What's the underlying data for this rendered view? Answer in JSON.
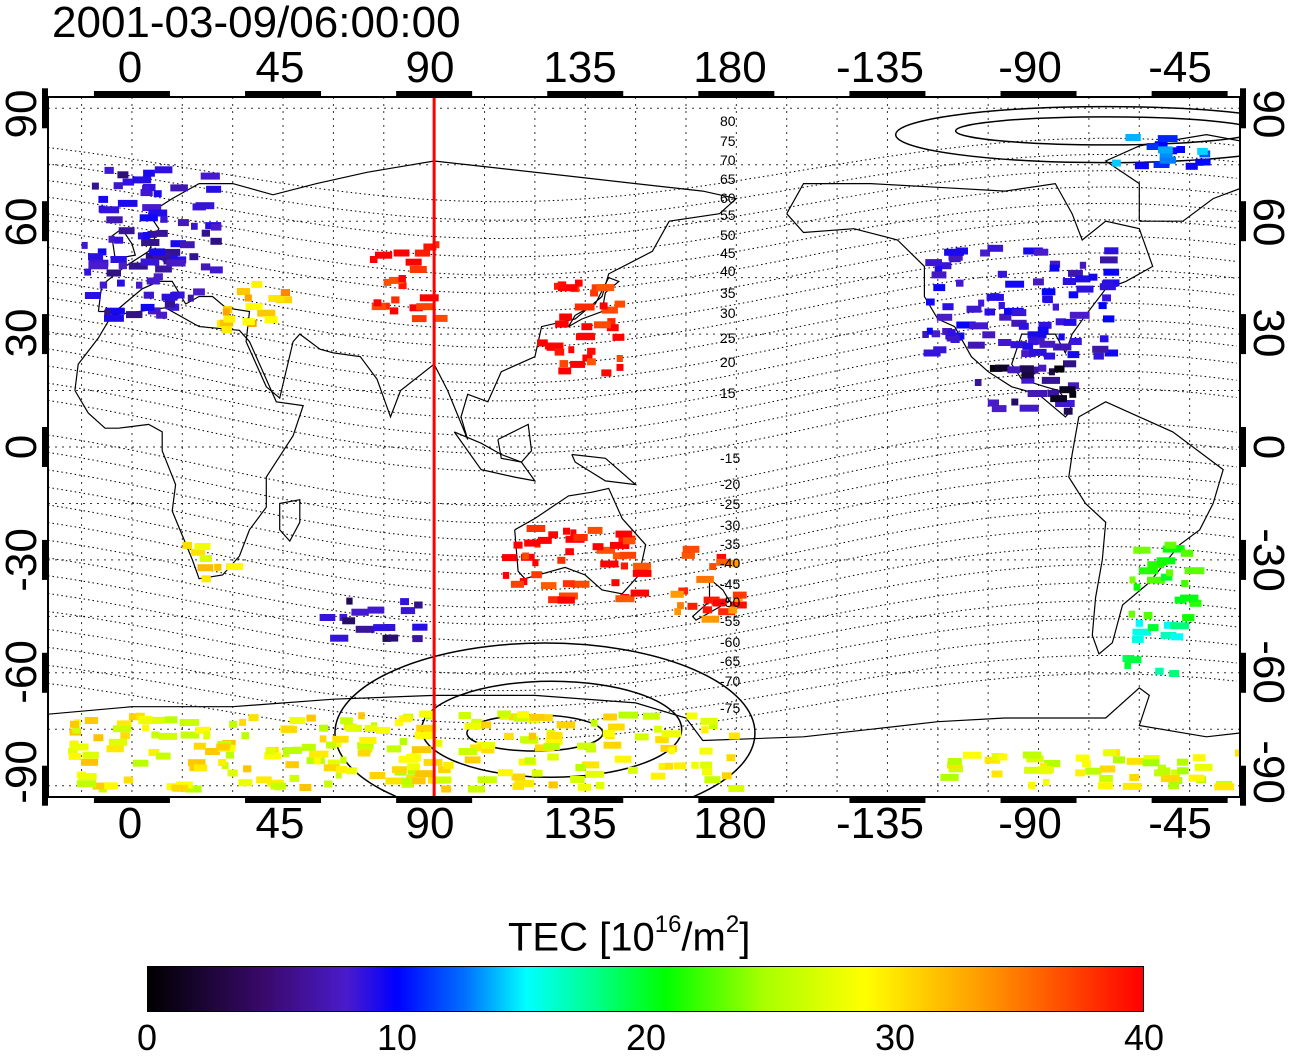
{
  "title": "2001-03-09/06:00:00",
  "axes": {
    "top_ticks": [
      "0",
      "45",
      "90",
      "135",
      "180",
      "-135",
      "-90",
      "-45"
    ],
    "bottom_ticks": [
      "0",
      "45",
      "90",
      "135",
      "180",
      "-135",
      "-90",
      "-45"
    ],
    "left_ticks": [
      "90",
      "60",
      "30",
      "0",
      "-30",
      "-60",
      "-90"
    ],
    "right_ticks": [
      "90",
      "60",
      "30",
      "0",
      "-30",
      "-60",
      "-90"
    ],
    "lon_range": [
      -25,
      330
    ],
    "lat_range": [
      -93,
      93
    ],
    "grid": "dotted 15° graticule"
  },
  "map": {
    "subsolar_meridian_lon": 90,
    "subsolar_line_color": "#ff0000",
    "contour_labels": [
      "80",
      "75",
      "70",
      "65",
      "60",
      "55",
      "50",
      "45",
      "40",
      "35",
      "30",
      "25",
      "20",
      "15",
      "-15",
      "-20",
      "-25",
      "-30",
      "-35",
      "-40",
      "-45",
      "-50",
      "-55",
      "-60",
      "-65",
      "-70",
      "-75"
    ]
  },
  "colorbar": {
    "title_main": "TEC  [10",
    "title_sup1": "16",
    "title_mid": "/m",
    "title_sup2": "2",
    "title_end": "]",
    "ticks": [
      "0",
      "10",
      "20",
      "30",
      "40"
    ],
    "range": [
      0,
      40
    ],
    "colors": [
      "#000000",
      "#4a1bcc",
      "#0000ff",
      "#00ffff",
      "#00ff00",
      "#ffff00",
      "#ff9900",
      "#ff0000"
    ]
  },
  "chart_data": {
    "type": "heatmap",
    "title": "2001-03-09/06:00:00",
    "xlabel": "",
    "ylabel": "",
    "xlim": [
      -25,
      330
    ],
    "ylim": [
      -93,
      93
    ],
    "colorbar_label": "TEC [10^16/m^2]",
    "colorbar_range": [
      0,
      40
    ],
    "regions": [
      {
        "lon": [
          -15,
          25
        ],
        "lat": [
          35,
          75
        ],
        "tec": 6
      },
      {
        "lon": [
          25,
          45
        ],
        "lat": [
          30,
          45
        ],
        "tec": 33
      },
      {
        "lon": [
          15,
          30
        ],
        "lat": [
          -35,
          -25
        ],
        "tec": 31
      },
      {
        "lon": [
          55,
          85
        ],
        "lat": [
          -50,
          -40
        ],
        "tec": 5
      },
      {
        "lon": [
          70,
          90
        ],
        "lat": [
          35,
          55
        ],
        "tec": 40
      },
      {
        "lon": [
          120,
          145
        ],
        "lat": [
          20,
          45
        ],
        "tec": 40
      },
      {
        "lon": [
          110,
          150
        ],
        "lat": [
          -40,
          -20
        ],
        "tec": 40
      },
      {
        "lon": [
          160,
          180
        ],
        "lat": [
          -45,
          -25
        ],
        "tec": 37
      },
      {
        "lon": [
          235,
          290
        ],
        "lat": [
          25,
          55
        ],
        "tec": 7
      },
      {
        "lon": [
          250,
          280
        ],
        "lat": [
          10,
          25
        ],
        "tec": 3
      },
      {
        "lon": [
          295,
          315
        ],
        "lat": [
          -45,
          -25
        ],
        "tec": 22
      },
      {
        "lon": [
          295,
          310
        ],
        "lat": [
          -60,
          -45
        ],
        "tec": 17
      },
      {
        "lon": [
          -20,
          180
        ],
        "lat": [
          -90,
          -70
        ],
        "tec": 30
      },
      {
        "lon": [
          240,
          330
        ],
        "lat": [
          -90,
          -80
        ],
        "tec": 29
      },
      {
        "lon": [
          290,
          320
        ],
        "lat": [
          75,
          85
        ],
        "tec": 12
      }
    ]
  }
}
